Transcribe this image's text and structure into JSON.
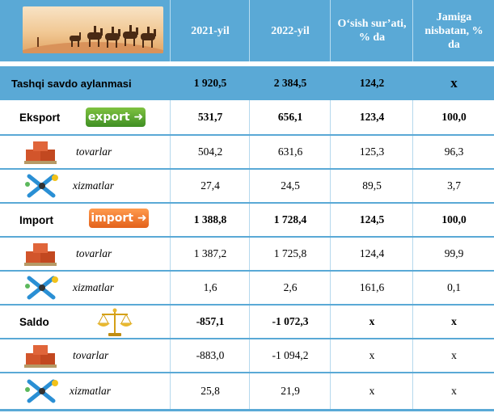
{
  "header": {
    "col1": "2021-yil",
    "col2": "2022-yil",
    "col3": "O‘sish sur’ati, % da",
    "col4": "Jamiga nisbatan, % da"
  },
  "badges": {
    "export": "export",
    "import": "import"
  },
  "rows": [
    {
      "label": "Tashqi savdo aylanmasi",
      "v2021": "1 920,5",
      "v2022": "2 384,5",
      "growth": "124,2",
      "share": "x"
    },
    {
      "label": "Eksport",
      "v2021": "531,7",
      "v2022": "656,1",
      "growth": "123,4",
      "share": "100,0"
    },
    {
      "label": "tovarlar",
      "v2021": "504,2",
      "v2022": "631,6",
      "growth": "125,3",
      "share": "96,3"
    },
    {
      "label": "xizmatlar",
      "v2021": "27,4",
      "v2022": "24,5",
      "growth": "89,5",
      "share": "3,7"
    },
    {
      "label": "Import",
      "v2021": "1 388,8",
      "v2022": "1 728,4",
      "growth": "124,5",
      "share": "100,0"
    },
    {
      "label": "tovarlar",
      "v2021": "1 387,2",
      "v2022": "1 725,8",
      "growth": "124,4",
      "share": "99,9"
    },
    {
      "label": "xizmatlar",
      "v2021": "1,6",
      "v2022": "2,6",
      "growth": "161,6",
      "share": "0,1"
    },
    {
      "label": "Saldo",
      "v2021": "-857,1",
      "v2022": "-1 072,3",
      "growth": "x",
      "share": "x"
    },
    {
      "label": "tovarlar",
      "v2021": "-883,0",
      "v2022": "-1 094,2",
      "growth": "x",
      "share": "x"
    },
    {
      "label": "xizmatlar",
      "v2021": "25,8",
      "v2022": "21,9",
      "growth": "x",
      "share": "x"
    }
  ]
}
